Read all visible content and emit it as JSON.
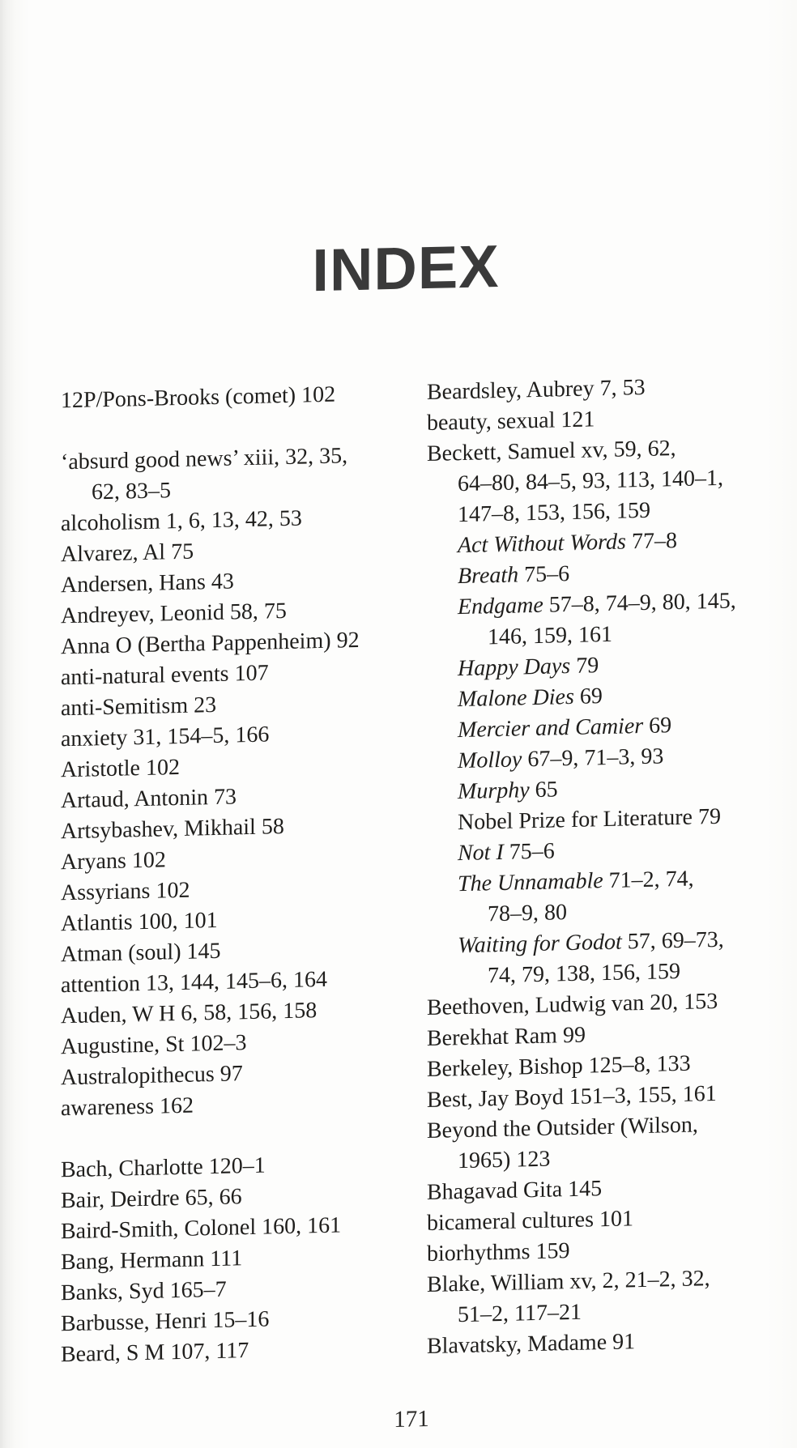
{
  "page": {
    "title": "INDEX",
    "number": "171",
    "colors": {
      "paper": "#fdfdfc",
      "ink": "#1f1e1c",
      "title_ink": "#3a3a3a"
    }
  },
  "index_columns": [
    {
      "name": "left",
      "lines": [
        {
          "indent": 0,
          "gap": false,
          "parts": [
            {
              "t": "12P/Pons-Brooks (comet) 102",
              "i": false
            }
          ]
        },
        {
          "indent": 0,
          "gap": true,
          "parts": [
            {
              "t": "‘absurd good news’ xiii, 32, 35,",
              "i": false
            }
          ]
        },
        {
          "indent": 1,
          "gap": false,
          "parts": [
            {
              "t": "62, 83–5",
              "i": false
            }
          ]
        },
        {
          "indent": 0,
          "gap": false,
          "parts": [
            {
              "t": "alcoholism 1, 6, 13, 42, 53",
              "i": false
            }
          ]
        },
        {
          "indent": 0,
          "gap": false,
          "parts": [
            {
              "t": "Alvarez, Al 75",
              "i": false
            }
          ]
        },
        {
          "indent": 0,
          "gap": false,
          "parts": [
            {
              "t": "Andersen, Hans 43",
              "i": false
            }
          ]
        },
        {
          "indent": 0,
          "gap": false,
          "parts": [
            {
              "t": "Andreyev, Leonid 58, 75",
              "i": false
            }
          ]
        },
        {
          "indent": 0,
          "gap": false,
          "parts": [
            {
              "t": "Anna O (Bertha Pappenheim) 92",
              "i": false
            }
          ]
        },
        {
          "indent": 0,
          "gap": false,
          "parts": [
            {
              "t": "anti-natural events 107",
              "i": false
            }
          ]
        },
        {
          "indent": 0,
          "gap": false,
          "parts": [
            {
              "t": "anti-Semitism 23",
              "i": false
            }
          ]
        },
        {
          "indent": 0,
          "gap": false,
          "parts": [
            {
              "t": "anxiety 31, 154–5, 166",
              "i": false
            }
          ]
        },
        {
          "indent": 0,
          "gap": false,
          "parts": [
            {
              "t": "Aristotle 102",
              "i": false
            }
          ]
        },
        {
          "indent": 0,
          "gap": false,
          "parts": [
            {
              "t": "Artaud, Antonin 73",
              "i": false
            }
          ]
        },
        {
          "indent": 0,
          "gap": false,
          "parts": [
            {
              "t": "Artsybashev, Mikhail 58",
              "i": false
            }
          ]
        },
        {
          "indent": 0,
          "gap": false,
          "parts": [
            {
              "t": "Aryans 102",
              "i": false
            }
          ]
        },
        {
          "indent": 0,
          "gap": false,
          "parts": [
            {
              "t": "Assyrians 102",
              "i": false
            }
          ]
        },
        {
          "indent": 0,
          "gap": false,
          "parts": [
            {
              "t": "Atlantis 100, 101",
              "i": false
            }
          ]
        },
        {
          "indent": 0,
          "gap": false,
          "parts": [
            {
              "t": "Atman (soul) 145",
              "i": false
            }
          ]
        },
        {
          "indent": 0,
          "gap": false,
          "parts": [
            {
              "t": "attention 13, 144, 145–6, 164",
              "i": false
            }
          ]
        },
        {
          "indent": 0,
          "gap": false,
          "parts": [
            {
              "t": "Auden, W H 6, 58, 156, 158",
              "i": false
            }
          ]
        },
        {
          "indent": 0,
          "gap": false,
          "parts": [
            {
              "t": "Augustine, St 102–3",
              "i": false
            }
          ]
        },
        {
          "indent": 0,
          "gap": false,
          "parts": [
            {
              "t": "Australopithecus 97",
              "i": false
            }
          ]
        },
        {
          "indent": 0,
          "gap": false,
          "parts": [
            {
              "t": "awareness 162",
              "i": false
            }
          ]
        },
        {
          "indent": 0,
          "gap": true,
          "parts": [
            {
              "t": "Bach, Charlotte 120–1",
              "i": false
            }
          ]
        },
        {
          "indent": 0,
          "gap": false,
          "parts": [
            {
              "t": "Bair, Deirdre 65, 66",
              "i": false
            }
          ]
        },
        {
          "indent": 0,
          "gap": false,
          "parts": [
            {
              "t": "Baird-Smith, Colonel 160, 161",
              "i": false
            }
          ]
        },
        {
          "indent": 0,
          "gap": false,
          "parts": [
            {
              "t": "Bang, Hermann 111",
              "i": false
            }
          ]
        },
        {
          "indent": 0,
          "gap": false,
          "parts": [
            {
              "t": "Banks, Syd 165–7",
              "i": false
            }
          ]
        },
        {
          "indent": 0,
          "gap": false,
          "parts": [
            {
              "t": "Barbusse, Henri 15–16",
              "i": false
            }
          ]
        },
        {
          "indent": 0,
          "gap": false,
          "parts": [
            {
              "t": "Beard, S M 107, 117",
              "i": false
            }
          ]
        }
      ]
    },
    {
      "name": "right",
      "lines": [
        {
          "indent": 0,
          "gap": false,
          "parts": [
            {
              "t": "Beardsley, Aubrey 7, 53",
              "i": false
            }
          ]
        },
        {
          "indent": 0,
          "gap": false,
          "parts": [
            {
              "t": "beauty, sexual 121",
              "i": false
            }
          ]
        },
        {
          "indent": 0,
          "gap": false,
          "parts": [
            {
              "t": "Beckett, Samuel xv, 59, 62,",
              "i": false
            }
          ]
        },
        {
          "indent": 1,
          "gap": false,
          "parts": [
            {
              "t": "64–80, 84–5, 93, 113, 140–1,",
              "i": false
            }
          ]
        },
        {
          "indent": 1,
          "gap": false,
          "parts": [
            {
              "t": "147–8, 153, 156, 159",
              "i": false
            }
          ]
        },
        {
          "indent": 1,
          "gap": false,
          "parts": [
            {
              "t": "Act Without Words",
              "i": true
            },
            {
              "t": " 77–8",
              "i": false
            }
          ]
        },
        {
          "indent": 1,
          "gap": false,
          "parts": [
            {
              "t": "Breath",
              "i": true
            },
            {
              "t": " 75–6",
              "i": false
            }
          ]
        },
        {
          "indent": 1,
          "gap": false,
          "parts": [
            {
              "t": "Endgame",
              "i": true
            },
            {
              "t": " 57–8, 74–9, 80, 145,",
              "i": false
            }
          ]
        },
        {
          "indent": 2,
          "gap": false,
          "parts": [
            {
              "t": "146, 159, 161",
              "i": false
            }
          ]
        },
        {
          "indent": 1,
          "gap": false,
          "parts": [
            {
              "t": "Happy Days",
              "i": true
            },
            {
              "t": " 79",
              "i": false
            }
          ]
        },
        {
          "indent": 1,
          "gap": false,
          "parts": [
            {
              "t": "Malone Dies",
              "i": true
            },
            {
              "t": " 69",
              "i": false
            }
          ]
        },
        {
          "indent": 1,
          "gap": false,
          "parts": [
            {
              "t": "Mercier and Camier",
              "i": true
            },
            {
              "t": " 69",
              "i": false
            }
          ]
        },
        {
          "indent": 1,
          "gap": false,
          "parts": [
            {
              "t": "Molloy",
              "i": true
            },
            {
              "t": " 67–9, 71–3, 93",
              "i": false
            }
          ]
        },
        {
          "indent": 1,
          "gap": false,
          "parts": [
            {
              "t": "Murphy",
              "i": true
            },
            {
              "t": " 65",
              "i": false
            }
          ]
        },
        {
          "indent": 1,
          "gap": false,
          "parts": [
            {
              "t": "Nobel Prize for Literature 79",
              "i": false
            }
          ]
        },
        {
          "indent": 1,
          "gap": false,
          "parts": [
            {
              "t": "Not I",
              "i": true
            },
            {
              "t": " 75–6",
              "i": false
            }
          ]
        },
        {
          "indent": 1,
          "gap": false,
          "parts": [
            {
              "t": "The Unnamable",
              "i": true
            },
            {
              "t": " 71–2, 74,",
              "i": false
            }
          ]
        },
        {
          "indent": 2,
          "gap": false,
          "parts": [
            {
              "t": "78–9, 80",
              "i": false
            }
          ]
        },
        {
          "indent": 1,
          "gap": false,
          "parts": [
            {
              "t": "Waiting for Godot",
              "i": true
            },
            {
              "t": " 57, 69–73,",
              "i": false
            }
          ]
        },
        {
          "indent": 2,
          "gap": false,
          "parts": [
            {
              "t": "74, 79, 138, 156, 159",
              "i": false
            }
          ]
        },
        {
          "indent": 0,
          "gap": false,
          "parts": [
            {
              "t": "Beethoven, Ludwig van 20, 153",
              "i": false
            }
          ]
        },
        {
          "indent": 0,
          "gap": false,
          "parts": [
            {
              "t": "Berekhat Ram 99",
              "i": false
            }
          ]
        },
        {
          "indent": 0,
          "gap": false,
          "parts": [
            {
              "t": "Berkeley, Bishop 125–8, 133",
              "i": false
            }
          ]
        },
        {
          "indent": 0,
          "gap": false,
          "parts": [
            {
              "t": "Best, Jay Boyd 151–3, 155, 161",
              "i": false
            }
          ]
        },
        {
          "indent": 0,
          "gap": false,
          "parts": [
            {
              "t": "Beyond the Outsider (Wilson,",
              "i": false
            }
          ]
        },
        {
          "indent": 1,
          "gap": false,
          "parts": [
            {
              "t": "1965) 123",
              "i": false
            }
          ]
        },
        {
          "indent": 0,
          "gap": false,
          "parts": [
            {
              "t": "Bhagavad Gita 145",
              "i": false
            }
          ]
        },
        {
          "indent": 0,
          "gap": false,
          "parts": [
            {
              "t": "bicameral cultures 101",
              "i": false
            }
          ]
        },
        {
          "indent": 0,
          "gap": false,
          "parts": [
            {
              "t": "biorhythms 159",
              "i": false
            }
          ]
        },
        {
          "indent": 0,
          "gap": false,
          "parts": [
            {
              "t": "Blake, William xv, 2, 21–2, 32,",
              "i": false
            }
          ]
        },
        {
          "indent": 1,
          "gap": false,
          "parts": [
            {
              "t": "51–2, 117–21",
              "i": false
            }
          ]
        },
        {
          "indent": 0,
          "gap": false,
          "parts": [
            {
              "t": "Blavatsky, Madame 91",
              "i": false
            }
          ]
        }
      ]
    }
  ]
}
